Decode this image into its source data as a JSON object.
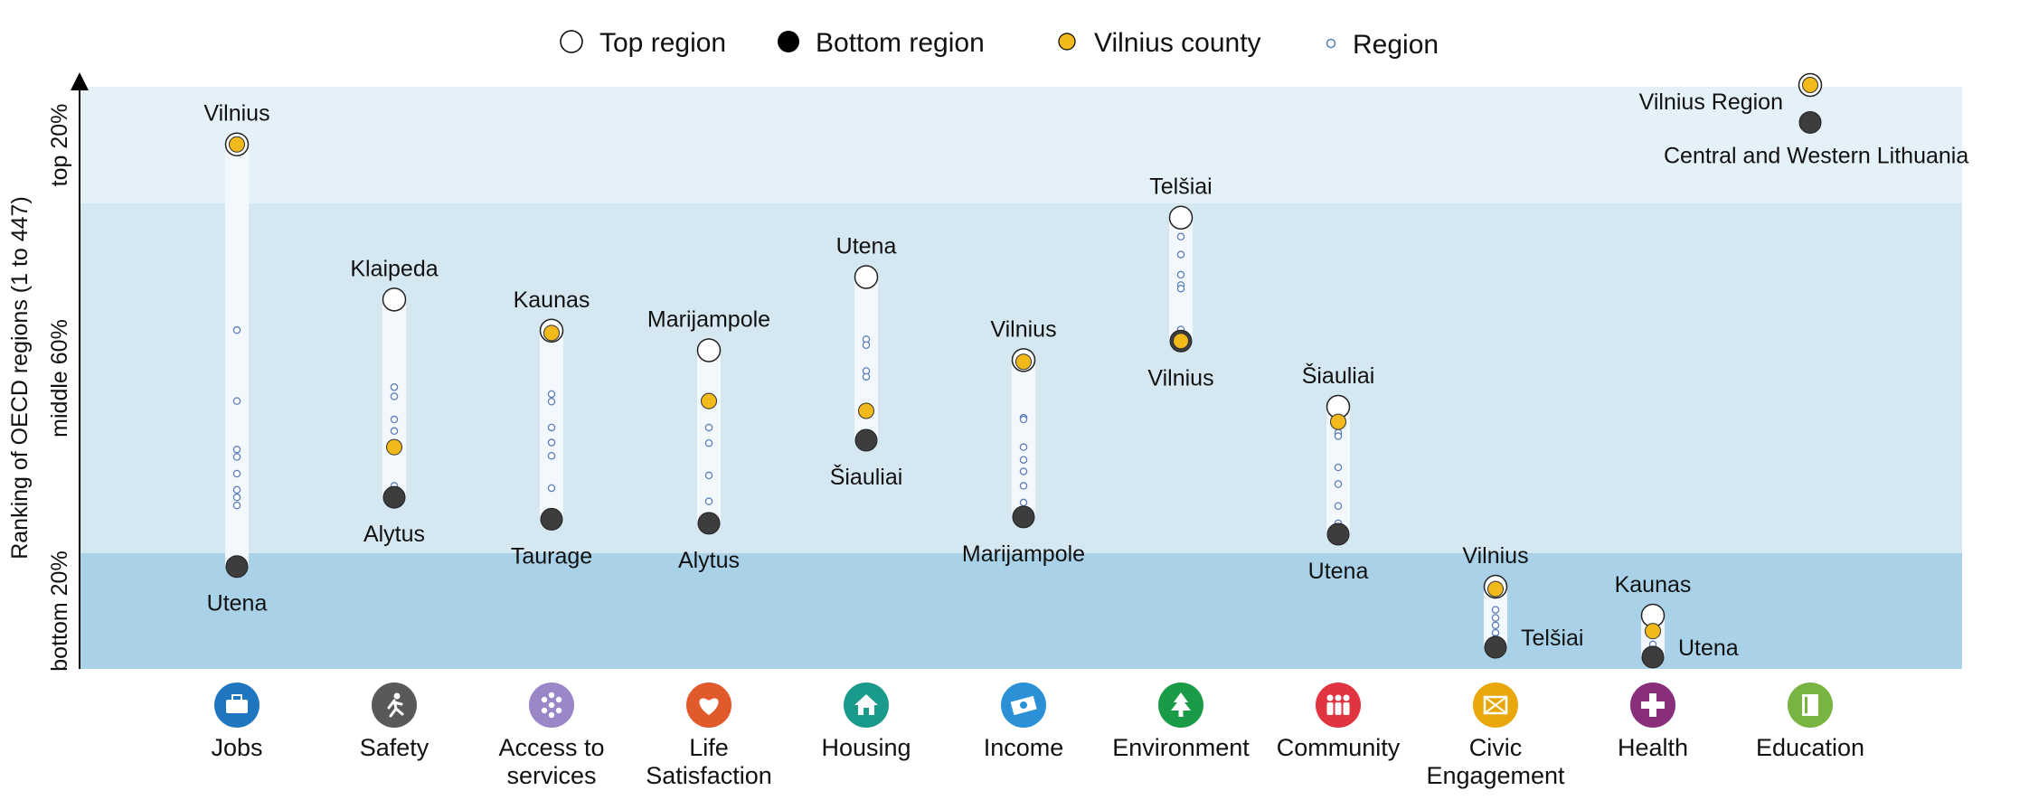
{
  "chart_data": {
    "type": "scatter",
    "y_axis_title": "Ranking of OECD regions (1 to 447)",
    "bands": [
      {
        "label": "top 20%",
        "color": "#e5f1f8"
      },
      {
        "label": "middle 60%",
        "color": "#d5e8f2"
      },
      {
        "label": "bottom 20%",
        "color": "#a9d2e8"
      }
    ],
    "legend": [
      {
        "label": "Top region",
        "symbol": "top"
      },
      {
        "label": "Bottom region",
        "symbol": "bottom"
      },
      {
        "label": "Vilnius county",
        "symbol": "county"
      },
      {
        "label": "Region",
        "symbol": "region"
      }
    ],
    "colors": {
      "county": "#f2b91a",
      "bottom": "#3d3d3d",
      "region_outline": "#5b7db8",
      "bar": "#f3f8fc"
    },
    "categories": [
      {
        "name": "Jobs",
        "icon": "briefcase-icon",
        "color": "#1f76bf",
        "top": 0.897,
        "bottom": 0.165,
        "county": 0.897,
        "top_label": "Vilnius",
        "bottom_label": "Utena",
        "regions": [
          0.575,
          0.452,
          0.368,
          0.355,
          0.326,
          0.298,
          0.285,
          0.271
        ]
      },
      {
        "name": "Safety",
        "icon": "runner-icon",
        "color": "#595959",
        "top": 0.628,
        "bottom": 0.285,
        "county": 0.372,
        "top_label": "Klaipeda",
        "bottom_label": "Alytus",
        "regions": [
          0.476,
          0.46,
          0.42,
          0.4,
          0.305
        ]
      },
      {
        "name": "Access to services",
        "icon": "services-icon",
        "color": "#9b87c8",
        "top": 0.574,
        "bottom": 0.247,
        "county": 0.57,
        "top_label": "Kaunas",
        "bottom_label": "Taurage",
        "regions": [
          0.464,
          0.451,
          0.406,
          0.38,
          0.357,
          0.301
        ]
      },
      {
        "name": "Life Satisfaction",
        "icon": "heart-icon",
        "color": "#e05a2b",
        "top": 0.54,
        "bottom": 0.24,
        "county": 0.452,
        "top_label": "Marijampole",
        "bottom_label": "Alytus",
        "regions": [
          0.406,
          0.379,
          0.323,
          0.278
        ]
      },
      {
        "name": "Housing",
        "icon": "house-icon",
        "color": "#1a9a8a",
        "top": 0.667,
        "bottom": 0.384,
        "county": 0.435,
        "top_label": "Utena",
        "bottom_label": "Šiauliai",
        "regions": [
          0.559,
          0.549,
          0.504,
          0.494
        ]
      },
      {
        "name": "Income",
        "icon": "money-icon",
        "color": "#2b90d6",
        "top": 0.523,
        "bottom": 0.251,
        "county": 0.52,
        "top_label": "Vilnius",
        "bottom_label": "Marijampole",
        "regions": [
          0.423,
          0.42,
          0.372,
          0.35,
          0.33,
          0.305,
          0.276
        ]
      },
      {
        "name": "Environment",
        "icon": "tree-icon",
        "color": "#1a9b48",
        "top": 0.77,
        "bottom": 0.556,
        "county": 0.556,
        "top_label": "Telšiai",
        "bottom_label": "Vilnius",
        "regions": [
          0.737,
          0.706,
          0.671,
          0.653,
          0.647,
          0.576
        ]
      },
      {
        "name": "Community",
        "icon": "people-icon",
        "color": "#e03440",
        "top": 0.442,
        "bottom": 0.221,
        "county": 0.416,
        "top_label": "Šiauliai",
        "bottom_label": "Utena",
        "regions": [
          0.397,
          0.391,
          0.337,
          0.308,
          0.27,
          0.24
        ]
      },
      {
        "name": "Civic Engagement",
        "icon": "civic-icon",
        "color": "#e8a80c",
        "top": 0.13,
        "bottom": 0.025,
        "county": 0.126,
        "top_label": "Vilnius",
        "bottom_label": "Telšiai",
        "regions": [
          0.09,
          0.076,
          0.063,
          0.05,
          0.04
        ]
      },
      {
        "name": "Health",
        "icon": "cross-icon",
        "color": "#8a2d7a",
        "top": 0.08,
        "bottom": 0.008,
        "county": 0.053,
        "top_label": "Kaunas",
        "bottom_label": "Utena",
        "regions": [
          0.03,
          0.02
        ]
      },
      {
        "name": "Education",
        "icon": "book-icon",
        "color": "#78b441",
        "top": 1.0,
        "bottom": 0.935,
        "county": 1.0,
        "top_label": "Vilnius Region",
        "bottom_label": "Central and Western Lithuania",
        "regions": []
      }
    ]
  }
}
